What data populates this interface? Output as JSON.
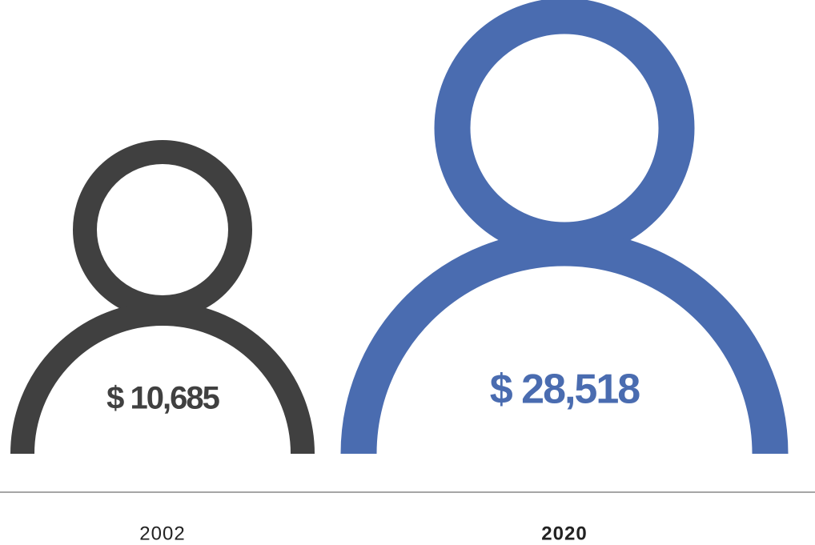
{
  "chart_data": {
    "type": "pictograph",
    "categories": [
      "2002",
      "2020"
    ],
    "values": [
      10685,
      28518
    ],
    "value_labels": [
      "$ 10,685",
      "$ 28,518"
    ],
    "colors": [
      "#404040",
      "#4a6cb0"
    ]
  }
}
